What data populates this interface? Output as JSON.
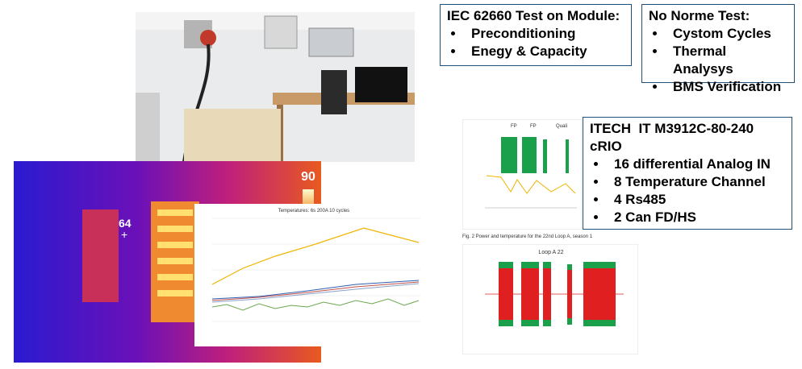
{
  "boxes": [
    {
      "title": "IEC 62660 Test on Module:",
      "items": [
        "Preconditioning",
        "Enegy & Capacity"
      ]
    },
    {
      "title": "No Norme Test:",
      "items": [
        "Cystom Cycles",
        "Thermal Analysys",
        "BMS Verification"
      ]
    },
    {
      "title": "ITECH  IT M3912C-80-240",
      "subtitle": "cRIO",
      "items": [
        "16 differential Analog IN",
        "8 Temperature Channel",
        "4 Rs485",
        "2 Can FD/HS"
      ]
    }
  ],
  "thermal": {
    "scale_max": "90",
    "spot_label": "64"
  },
  "temperature_chart": {
    "title": "Temperatures: 6s 200A 10 cycles"
  },
  "power_chart": {
    "phases": [
      "FP",
      "FP",
      "Quali"
    ]
  },
  "caption": "Fig. 2  Power and temperature for the 22nd Loop A, season 1",
  "loop_chart": {
    "title": "Loop A 22"
  }
}
